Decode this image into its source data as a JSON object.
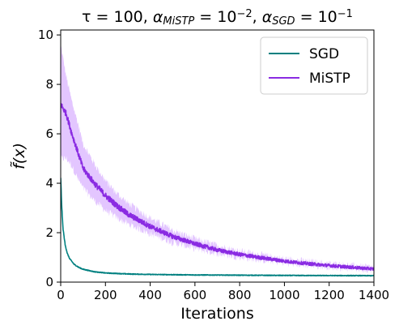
{
  "chart_data": {
    "type": "line",
    "title": {
      "parts": [
        {
          "t": "τ = 100, "
        },
        {
          "t": "α",
          "i": true
        },
        {
          "t": "MiSTP",
          "sub": true,
          "i": true
        },
        {
          "t": " = 10"
        },
        {
          "t": "−2",
          "sup": true
        },
        {
          "t": ", "
        },
        {
          "t": "α",
          "i": true
        },
        {
          "t": "SGD",
          "sub": true,
          "i": true
        },
        {
          "t": " = 10"
        },
        {
          "t": "−1",
          "sup": true
        }
      ]
    },
    "xlabel": "Iterations",
    "ylabel": "f̃(x)",
    "xlim": [
      0,
      1400
    ],
    "ylim": [
      0,
      10.2
    ],
    "xticks": [
      0,
      200,
      400,
      600,
      800,
      1000,
      1200,
      1400
    ],
    "yticks": [
      0,
      2,
      4,
      6,
      8,
      10
    ],
    "legend": {
      "position": "top-right"
    },
    "series": [
      {
        "name": "SGD",
        "color": "#008080",
        "x": [
          0,
          5,
          10,
          20,
          30,
          40,
          60,
          80,
          100,
          150,
          200,
          300,
          400,
          600,
          800,
          1000,
          1200,
          1400
        ],
        "y": [
          4.2,
          3.0,
          2.2,
          1.5,
          1.15,
          0.95,
          0.72,
          0.6,
          0.52,
          0.42,
          0.37,
          0.33,
          0.31,
          0.29,
          0.28,
          0.27,
          0.265,
          0.26
        ],
        "noise": 0.03
      },
      {
        "name": "MiSTP",
        "color": "#8a2be2",
        "band_color": "#d9b3ff",
        "x": [
          0,
          25,
          50,
          75,
          100,
          150,
          200,
          250,
          300,
          400,
          500,
          600,
          700,
          800,
          900,
          1000,
          1100,
          1200,
          1300,
          1400
        ],
        "y": [
          7.2,
          6.8,
          6.0,
          5.3,
          4.6,
          4.0,
          3.5,
          3.1,
          2.75,
          2.25,
          1.85,
          1.55,
          1.3,
          1.12,
          0.98,
          0.85,
          0.75,
          0.67,
          0.6,
          0.53
        ],
        "band_low": [
          5.0,
          5.0,
          4.7,
          4.2,
          3.8,
          3.3,
          2.9,
          2.6,
          2.35,
          1.95,
          1.6,
          1.35,
          1.15,
          1.0,
          0.88,
          0.77,
          0.68,
          0.61,
          0.55,
          0.48
        ],
        "band_high": [
          9.6,
          8.3,
          7.3,
          6.5,
          5.6,
          4.8,
          4.1,
          3.6,
          3.2,
          2.6,
          2.1,
          1.75,
          1.48,
          1.26,
          1.1,
          0.95,
          0.84,
          0.75,
          0.67,
          0.6
        ],
        "noise": 0.12
      }
    ]
  }
}
